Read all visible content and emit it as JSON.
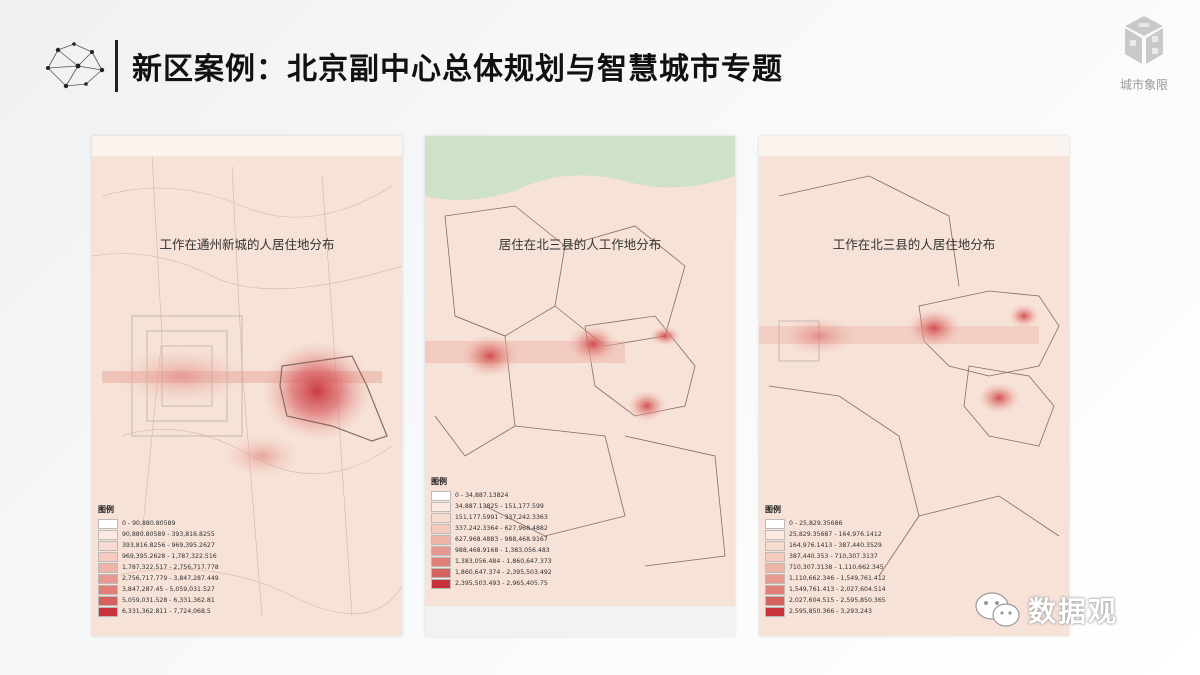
{
  "header": {
    "title": "新区案例：北京副中心总体规划与智慧城市专题"
  },
  "brand": {
    "name": "城市象限",
    "icon": "cube-logo-icon"
  },
  "colors": {
    "heat_low": "#f9e4dc",
    "heat_high": "#c8323a",
    "map_base": "#f6e1d6",
    "title_text": "#111111"
  },
  "maps": [
    {
      "title": "工作在通州新城的人居住地分布",
      "legend_title": "图例",
      "legend": [
        "0 - 90,880.80589",
        "90,880.80589 - 393,816.8255",
        "393,816.8256 - 969,395.2627",
        "969,395.2628 - 1,787,322.516",
        "1,787,322.517 - 2,756,717.778",
        "2,756,717.779 - 3,847,287.449",
        "3,847,287.45 - 5,059,031.527",
        "5,059,031.528 - 6,331,362.81",
        "6,331,362.811 - 7,724,068.5"
      ]
    },
    {
      "title": "居住在北三县的人工作地分布",
      "legend_title": "图例",
      "legend": [
        "0 - 34,887.13824",
        "34,887.13825 - 151,177.599",
        "151,177.5991 - 337,242.3363",
        "337,242.3364 - 627,968.4882",
        "627,968.4883 - 988,468.9167",
        "988,468.9168 - 1,383,056.483",
        "1,383,056.484 - 1,860,647.373",
        "1,860,647.374 - 2,395,503.492",
        "2,395,503.493 - 2,965,405.75"
      ]
    },
    {
      "title": "工作在北三县的人居住地分布",
      "legend_title": "图例",
      "legend": [
        "0 - 25,829.35686",
        "25,829.35687 - 164,976.1412",
        "164,976.1413 - 387,440.3529",
        "387,440.353 - 710,307.3137",
        "710,307.3138 - 1,110,662.345",
        "1,110,662.346 - 1,549,761.412",
        "1,549,761.413 - 2,027,604.514",
        "2,027,604.515 - 2,595,850.365",
        "2,595,850.366 - 3,293,243"
      ]
    }
  ],
  "legend_colors": [
    "#ffffff",
    "#fbe9e2",
    "#f8dbd0",
    "#f4cbbe",
    "#eeb4a8",
    "#e79990",
    "#df7f78",
    "#d5625e",
    "#c8323a"
  ],
  "watermark": {
    "text": "数据观",
    "icon": "wechat-icon"
  }
}
